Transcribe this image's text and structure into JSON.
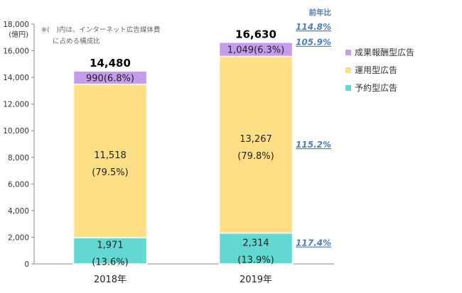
{
  "chart_data": {
    "type": "bar",
    "stacked": true,
    "categories": [
      "2018年",
      "2019年"
    ],
    "series": [
      {
        "name": "予約型広告",
        "color": "#63D8D2",
        "values": [
          1971,
          2314
        ],
        "labels": [
          "1,971",
          "2,314"
        ],
        "shares": [
          "(13.6%)",
          "(13.9%)"
        ]
      },
      {
        "name": "運用型広告",
        "color": "#FFDF85",
        "values": [
          11518,
          13267
        ],
        "labels": [
          "11,518",
          "13,267"
        ],
        "shares": [
          "(79.5%)",
          "(79.8%)"
        ]
      },
      {
        "name": "成果報酬型広告",
        "color": "#C59CEB",
        "values": [
          990,
          1049
        ],
        "labels": [
          "990(6.8%)",
          "1,049(6.3%)"
        ]
      }
    ],
    "totals": [
      "14,480",
      "16,630"
    ],
    "ylim": [
      0,
      18000
    ],
    "yticks": [
      "0",
      "2,000",
      "4,000",
      "6,000",
      "8,000",
      "10,000",
      "12,000",
      "14,000",
      "16,000",
      "18,000"
    ],
    "yunit": "(億円)",
    "note": [
      "※(　)内は、インターネット広告媒体費",
      "に占める構成比"
    ],
    "yoy": {
      "header": "前年比",
      "total": "114.8%",
      "values": [
        "117.4%",
        "115.2%",
        "105.9%"
      ]
    },
    "legend_placement": "right",
    "grid": false
  }
}
